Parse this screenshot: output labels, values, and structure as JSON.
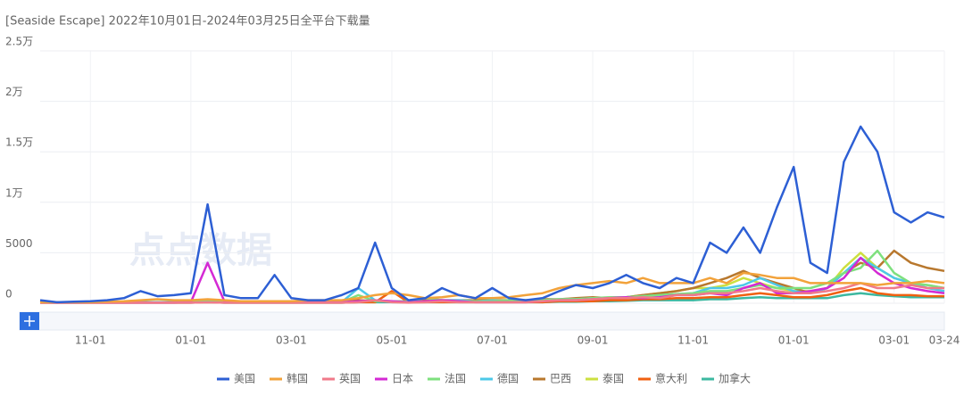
{
  "chart_data": {
    "type": "line",
    "title": "[Seaside Escape]  2022年10月01日-2024年03月25日全平台下载量",
    "watermark": "点点数据",
    "categories": [
      "10-01",
      "10-11",
      "10-21",
      "11-01",
      "11-11",
      "11-21",
      "12-01",
      "12-11",
      "12-21",
      "01-01",
      "01-11",
      "01-21",
      "02-01",
      "02-11",
      "02-21",
      "03-01",
      "03-11",
      "03-21",
      "04-01",
      "04-11",
      "04-21",
      "05-01",
      "05-11",
      "05-21",
      "06-01",
      "06-11",
      "06-21",
      "07-01",
      "07-11",
      "07-21",
      "08-01",
      "08-11",
      "08-21",
      "09-01",
      "09-11",
      "09-21",
      "10-01",
      "10-11",
      "10-21",
      "11-01",
      "11-11",
      "11-21",
      "12-01",
      "12-11",
      "12-21",
      "01-01",
      "01-11",
      "01-21",
      "02-01",
      "02-11",
      "02-21",
      "03-01",
      "03-11",
      "03-21",
      "03-24"
    ],
    "xticks": [
      "11-01",
      "01-01",
      "03-01",
      "05-01",
      "07-01",
      "09-01",
      "11-01",
      "01-01",
      "03-01",
      "03-24"
    ],
    "ylim": [
      0,
      25000
    ],
    "yticks": [
      0,
      5000,
      {
        "value": 10000,
        "label": "1万"
      },
      {
        "value": 15000,
        "label": "1.5万"
      },
      {
        "value": 20000,
        "label": "2万"
      },
      {
        "value": 25000,
        "label": "2.5万"
      }
    ],
    "grid": true,
    "series": [
      {
        "name": "美国",
        "color": "#2d5fd4",
        "values": [
          300,
          100,
          150,
          200,
          300,
          500,
          1200,
          700,
          800,
          1000,
          9800,
          800,
          500,
          500,
          2800,
          500,
          300,
          300,
          800,
          1500,
          6000,
          1500,
          300,
          500,
          1500,
          800,
          500,
          1500,
          500,
          300,
          500,
          1200,
          1800,
          1500,
          2000,
          2800,
          2000,
          1500,
          2500,
          2000,
          6000,
          5000,
          7500,
          5000,
          9500,
          13500,
          4000,
          3000,
          14000,
          17500,
          15000,
          9000,
          8000,
          9000,
          8500
        ]
      },
      {
        "name": "韩国",
        "color": "#f2a23a",
        "values": [
          100,
          100,
          100,
          100,
          150,
          200,
          300,
          400,
          300,
          300,
          400,
          300,
          200,
          200,
          200,
          200,
          300,
          300,
          300,
          500,
          800,
          1000,
          800,
          500,
          600,
          800,
          500,
          500,
          600,
          800,
          1000,
          1500,
          1800,
          2000,
          2200,
          2000,
          2500,
          2000,
          2000,
          2000,
          2500,
          2000,
          3000,
          2800,
          2500,
          2500,
          2000,
          2000,
          2000,
          2000,
          1800,
          2000,
          2000,
          2200,
          2000
        ]
      },
      {
        "name": "英国",
        "color": "#f07a8a",
        "values": [
          50,
          50,
          50,
          50,
          50,
          50,
          50,
          50,
          50,
          50,
          100,
          50,
          50,
          50,
          50,
          50,
          50,
          50,
          50,
          100,
          300,
          100,
          50,
          100,
          200,
          100,
          100,
          100,
          100,
          100,
          200,
          300,
          300,
          400,
          500,
          500,
          600,
          500,
          800,
          800,
          1000,
          1000,
          1200,
          1500,
          1200,
          1000,
          1000,
          1200,
          1500,
          2000,
          1500,
          1500,
          1800,
          1500,
          1500
        ]
      },
      {
        "name": "日本",
        "color": "#d42ad4",
        "values": [
          50,
          50,
          50,
          50,
          50,
          50,
          50,
          50,
          50,
          100,
          4000,
          200,
          100,
          100,
          100,
          100,
          100,
          100,
          100,
          200,
          300,
          200,
          100,
          200,
          300,
          200,
          100,
          100,
          100,
          100,
          200,
          300,
          300,
          400,
          500,
          600,
          500,
          600,
          800,
          800,
          1000,
          800,
          1500,
          2000,
          1000,
          1000,
          1200,
          1500,
          2500,
          4500,
          3000,
          2000,
          1500,
          1200,
          1000
        ]
      },
      {
        "name": "法国",
        "color": "#7ee07e",
        "values": [
          80,
          80,
          80,
          80,
          80,
          80,
          80,
          80,
          80,
          100,
          300,
          100,
          100,
          100,
          100,
          100,
          100,
          100,
          100,
          800,
          200,
          200,
          200,
          500,
          300,
          200,
          200,
          200,
          300,
          300,
          300,
          400,
          400,
          500,
          600,
          600,
          700,
          800,
          900,
          1000,
          1200,
          1200,
          1500,
          1800,
          1500,
          1500,
          1500,
          2000,
          3000,
          3500,
          5200,
          3000,
          2000,
          1800,
          1500
        ]
      },
      {
        "name": "德国",
        "color": "#4cc8e8",
        "values": [
          100,
          100,
          100,
          100,
          100,
          100,
          100,
          100,
          100,
          100,
          300,
          200,
          100,
          100,
          100,
          100,
          100,
          100,
          100,
          1500,
          300,
          200,
          200,
          500,
          300,
          300,
          200,
          300,
          200,
          200,
          300,
          400,
          400,
          500,
          500,
          600,
          700,
          800,
          900,
          1000,
          1500,
          1500,
          1800,
          2500,
          1800,
          1200,
          1000,
          1500,
          3000,
          4500,
          3500,
          2500,
          2000,
          1500,
          1200
        ]
      },
      {
        "name": "巴西",
        "color": "#b8782e",
        "values": [
          100,
          100,
          100,
          100,
          100,
          100,
          100,
          100,
          100,
          100,
          200,
          100,
          100,
          100,
          100,
          100,
          100,
          100,
          100,
          300,
          200,
          200,
          200,
          300,
          300,
          300,
          300,
          300,
          300,
          300,
          400,
          400,
          500,
          600,
          500,
          600,
          800,
          1000,
          1200,
          1500,
          2000,
          2500,
          3200,
          2500,
          2000,
          1500,
          1000,
          1500,
          3000,
          4000,
          3500,
          5200,
          4000,
          3500,
          3200
        ]
      },
      {
        "name": "泰国",
        "color": "#cce040",
        "values": [
          100,
          100,
          100,
          100,
          100,
          100,
          100,
          100,
          100,
          100,
          200,
          100,
          100,
          100,
          100,
          100,
          100,
          100,
          100,
          300,
          200,
          200,
          200,
          300,
          300,
          200,
          200,
          200,
          200,
          200,
          300,
          300,
          400,
          500,
          500,
          600,
          800,
          1000,
          1200,
          1500,
          1500,
          1800,
          2500,
          2000,
          1500,
          1200,
          1200,
          1500,
          3500,
          5000,
          3500,
          2500,
          2000,
          1800,
          1500
        ]
      },
      {
        "name": "意大利",
        "color": "#f06010",
        "values": [
          50,
          50,
          50,
          50,
          50,
          50,
          50,
          50,
          50,
          50,
          100,
          50,
          50,
          50,
          50,
          50,
          50,
          50,
          50,
          100,
          100,
          1200,
          100,
          100,
          100,
          100,
          100,
          100,
          100,
          100,
          100,
          200,
          200,
          200,
          300,
          300,
          400,
          400,
          500,
          500,
          600,
          600,
          800,
          1000,
          800,
          600,
          600,
          800,
          1200,
          1500,
          1000,
          800,
          800,
          700,
          700
        ]
      },
      {
        "name": "加拿大",
        "color": "#3cb8a0",
        "values": [
          50,
          50,
          50,
          50,
          50,
          50,
          50,
          50,
          50,
          50,
          100,
          50,
          50,
          50,
          50,
          50,
          50,
          50,
          50,
          100,
          100,
          100,
          100,
          100,
          100,
          100,
          100,
          100,
          100,
          100,
          100,
          150,
          150,
          200,
          200,
          250,
          300,
          300,
          300,
          300,
          400,
          400,
          500,
          600,
          500,
          500,
          500,
          500,
          800,
          1000,
          800,
          700,
          600,
          600,
          600
        ]
      }
    ]
  }
}
